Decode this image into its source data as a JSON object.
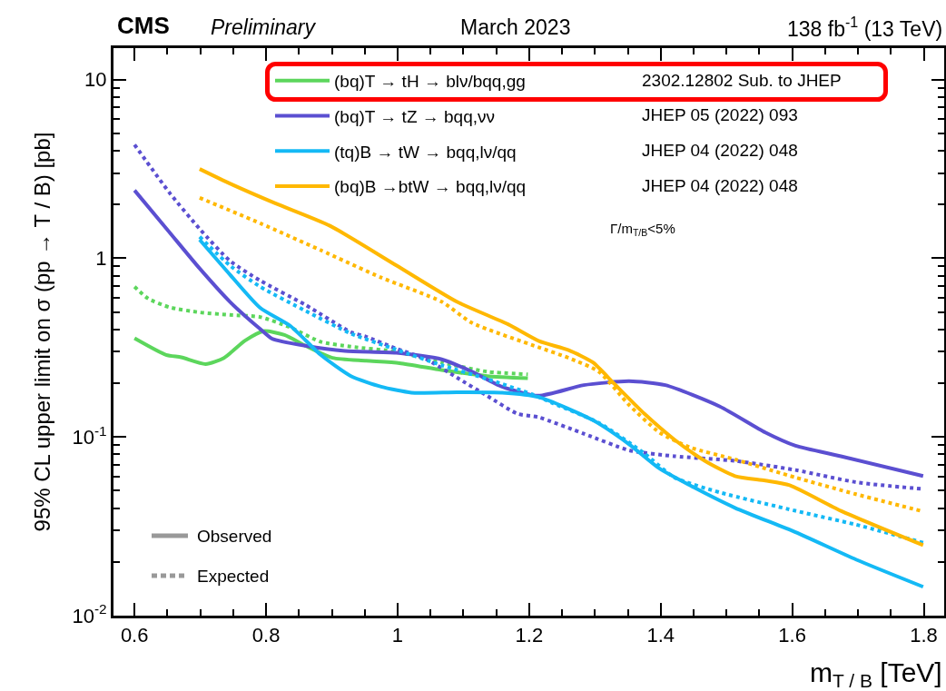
{
  "chart_data": {
    "type": "line",
    "xlabel": "m$_{T / B}$ [TeV]",
    "ylabel": "95% CL upper limit on σ (pp → T / B) [pb]",
    "xlim": [
      0.568,
      1.831
    ],
    "xticks": [
      0.6,
      0.8,
      1,
      1.2,
      1.4,
      1.6,
      1.8
    ],
    "ylim": [
      0.01,
      15
    ],
    "yticks": [
      {
        "value": 0.01,
        "label": "10$^{-2}$"
      },
      {
        "value": 0.1,
        "label": "10$^{-1}$"
      },
      1,
      10
    ],
    "log": "y",
    "grid": false,
    "legend": "top",
    "marker": "none",
    "annotations": [
      "CMS",
      "Preliminary",
      "March 2023",
      "138 fb$^{-1}$ (13 TeV)",
      "2302.12802 Sub. to JHEP",
      "JHEP 05 (2022) 093",
      "JHEP 04 (2022) 048",
      "JHEP 04 (2022) 048",
      "Γ/m$_{T/B}$<5%",
      "Observed",
      "Expected"
    ],
    "series": [
      {
        "name": "(bq)T → tH → blν/bqq,gg",
        "color": "#5cd65c",
        "line_style": "solid",
        "x": [
          0.6,
          0.648,
          0.671,
          0.708,
          0.736,
          0.768,
          0.796,
          0.828,
          0.86,
          0.901,
          0.952,
          1.003,
          1.067,
          1.136,
          1.198
        ],
        "values": [
          0.357,
          0.288,
          0.279,
          0.256,
          0.277,
          0.346,
          0.391,
          0.372,
          0.324,
          0.277,
          0.267,
          0.259,
          0.237,
          0.219,
          0.213
        ]
      },
      {
        "color": "#5cd65c",
        "line_style": "dotted",
        "x": [
          0.6,
          0.621,
          0.653,
          0.699,
          0.745,
          0.791,
          0.837,
          0.883,
          0.929,
          0.998,
          1.067,
          1.136,
          1.198
        ],
        "values": [
          0.693,
          0.594,
          0.532,
          0.498,
          0.482,
          0.469,
          0.41,
          0.341,
          0.32,
          0.3,
          0.261,
          0.232,
          0.224
        ]
      },
      {
        "name": "(bq)T → tZ → bqq,νν",
        "color": "#5b4fd1",
        "line_style": "solid",
        "x": [
          0.6,
          0.653,
          0.699,
          0.745,
          0.791,
          0.809,
          0.86,
          0.92,
          0.998,
          1.067,
          1.113,
          1.159,
          1.214,
          1.283,
          1.352,
          1.407,
          1.49,
          1.559,
          1.605,
          1.674,
          1.799
        ],
        "values": [
          2.4,
          1.4,
          0.877,
          0.571,
          0.402,
          0.355,
          0.324,
          0.303,
          0.296,
          0.272,
          0.232,
          0.191,
          0.17,
          0.195,
          0.205,
          0.195,
          0.148,
          0.106,
          0.0893,
          0.078,
          0.0604
        ]
      },
      {
        "color": "#5b4fd1",
        "line_style": "dotted",
        "x": [
          0.6,
          0.653,
          0.699,
          0.745,
          0.791,
          0.86,
          0.929,
          0.952,
          0.998,
          1.044,
          1.09,
          1.136,
          1.182,
          1.214,
          1.284,
          1.352,
          1.421,
          1.513,
          1.605,
          1.697,
          1.799
        ],
        "values": [
          4.32,
          2.33,
          1.46,
          0.968,
          0.75,
          0.548,
          0.386,
          0.364,
          0.312,
          0.272,
          0.215,
          0.17,
          0.135,
          0.129,
          0.104,
          0.0842,
          0.078,
          0.0735,
          0.0653,
          0.0558,
          0.0511
        ]
      },
      {
        "name": "(tq)B → tW → bqq,lν/qq",
        "color": "#14b9f5",
        "line_style": "solid",
        "x": [
          0.699,
          0.745,
          0.791,
          0.837,
          0.883,
          0.929,
          0.975,
          1.021,
          1.09,
          1.159,
          1.215,
          1.297,
          1.352,
          1.398,
          1.444,
          1.513,
          1.605,
          1.697,
          1.799
        ],
        "values": [
          1.27,
          0.811,
          0.528,
          0.418,
          0.288,
          0.219,
          0.191,
          0.177,
          0.178,
          0.177,
          0.167,
          0.124,
          0.091,
          0.0666,
          0.0537,
          0.0401,
          0.0293,
          0.0206,
          0.0145
        ]
      },
      {
        "color": "#14b9f5",
        "line_style": "dotted",
        "x": [
          0.699,
          0.745,
          0.791,
          0.86,
          0.929,
          0.998,
          1.067,
          1.136,
          1.205,
          1.237,
          1.306,
          1.375,
          1.421,
          1.491,
          1.605,
          1.697,
          1.799
        ],
        "values": [
          1.32,
          0.912,
          0.693,
          0.508,
          0.379,
          0.308,
          0.252,
          0.211,
          0.173,
          0.154,
          0.12,
          0.081,
          0.0593,
          0.0488,
          0.0386,
          0.0323,
          0.0256
        ]
      },
      {
        "name": "(bq)B →btW → bqq,lν/qq",
        "color": "#ffb800",
        "line_style": "solid",
        "x": [
          0.699,
          0.745,
          0.814,
          0.897,
          0.998,
          1.09,
          1.168,
          1.215,
          1.26,
          1.297,
          1.329,
          1.375,
          1.421,
          1.467,
          1.513,
          1.559,
          1.596,
          1.674,
          1.799
        ],
        "values": [
          3.16,
          2.62,
          2.03,
          1.52,
          0.912,
          0.571,
          0.427,
          0.344,
          0.306,
          0.261,
          0.199,
          0.135,
          0.0965,
          0.0735,
          0.0604,
          0.057,
          0.0537,
          0.0386,
          0.0248
        ]
      },
      {
        "color": "#ffb800",
        "line_style": "dotted",
        "x": [
          0.699,
          0.791,
          0.883,
          0.975,
          1.067,
          1.113,
          1.214,
          1.26,
          1.306,
          1.352,
          1.398,
          1.444,
          1.513,
          1.605,
          1.697,
          1.799
        ],
        "values": [
          2.18,
          1.57,
          1.11,
          0.78,
          0.571,
          0.435,
          0.318,
          0.277,
          0.232,
          0.151,
          0.106,
          0.0876,
          0.0748,
          0.0593,
          0.0478,
          0.0383
        ]
      }
    ]
  }
}
